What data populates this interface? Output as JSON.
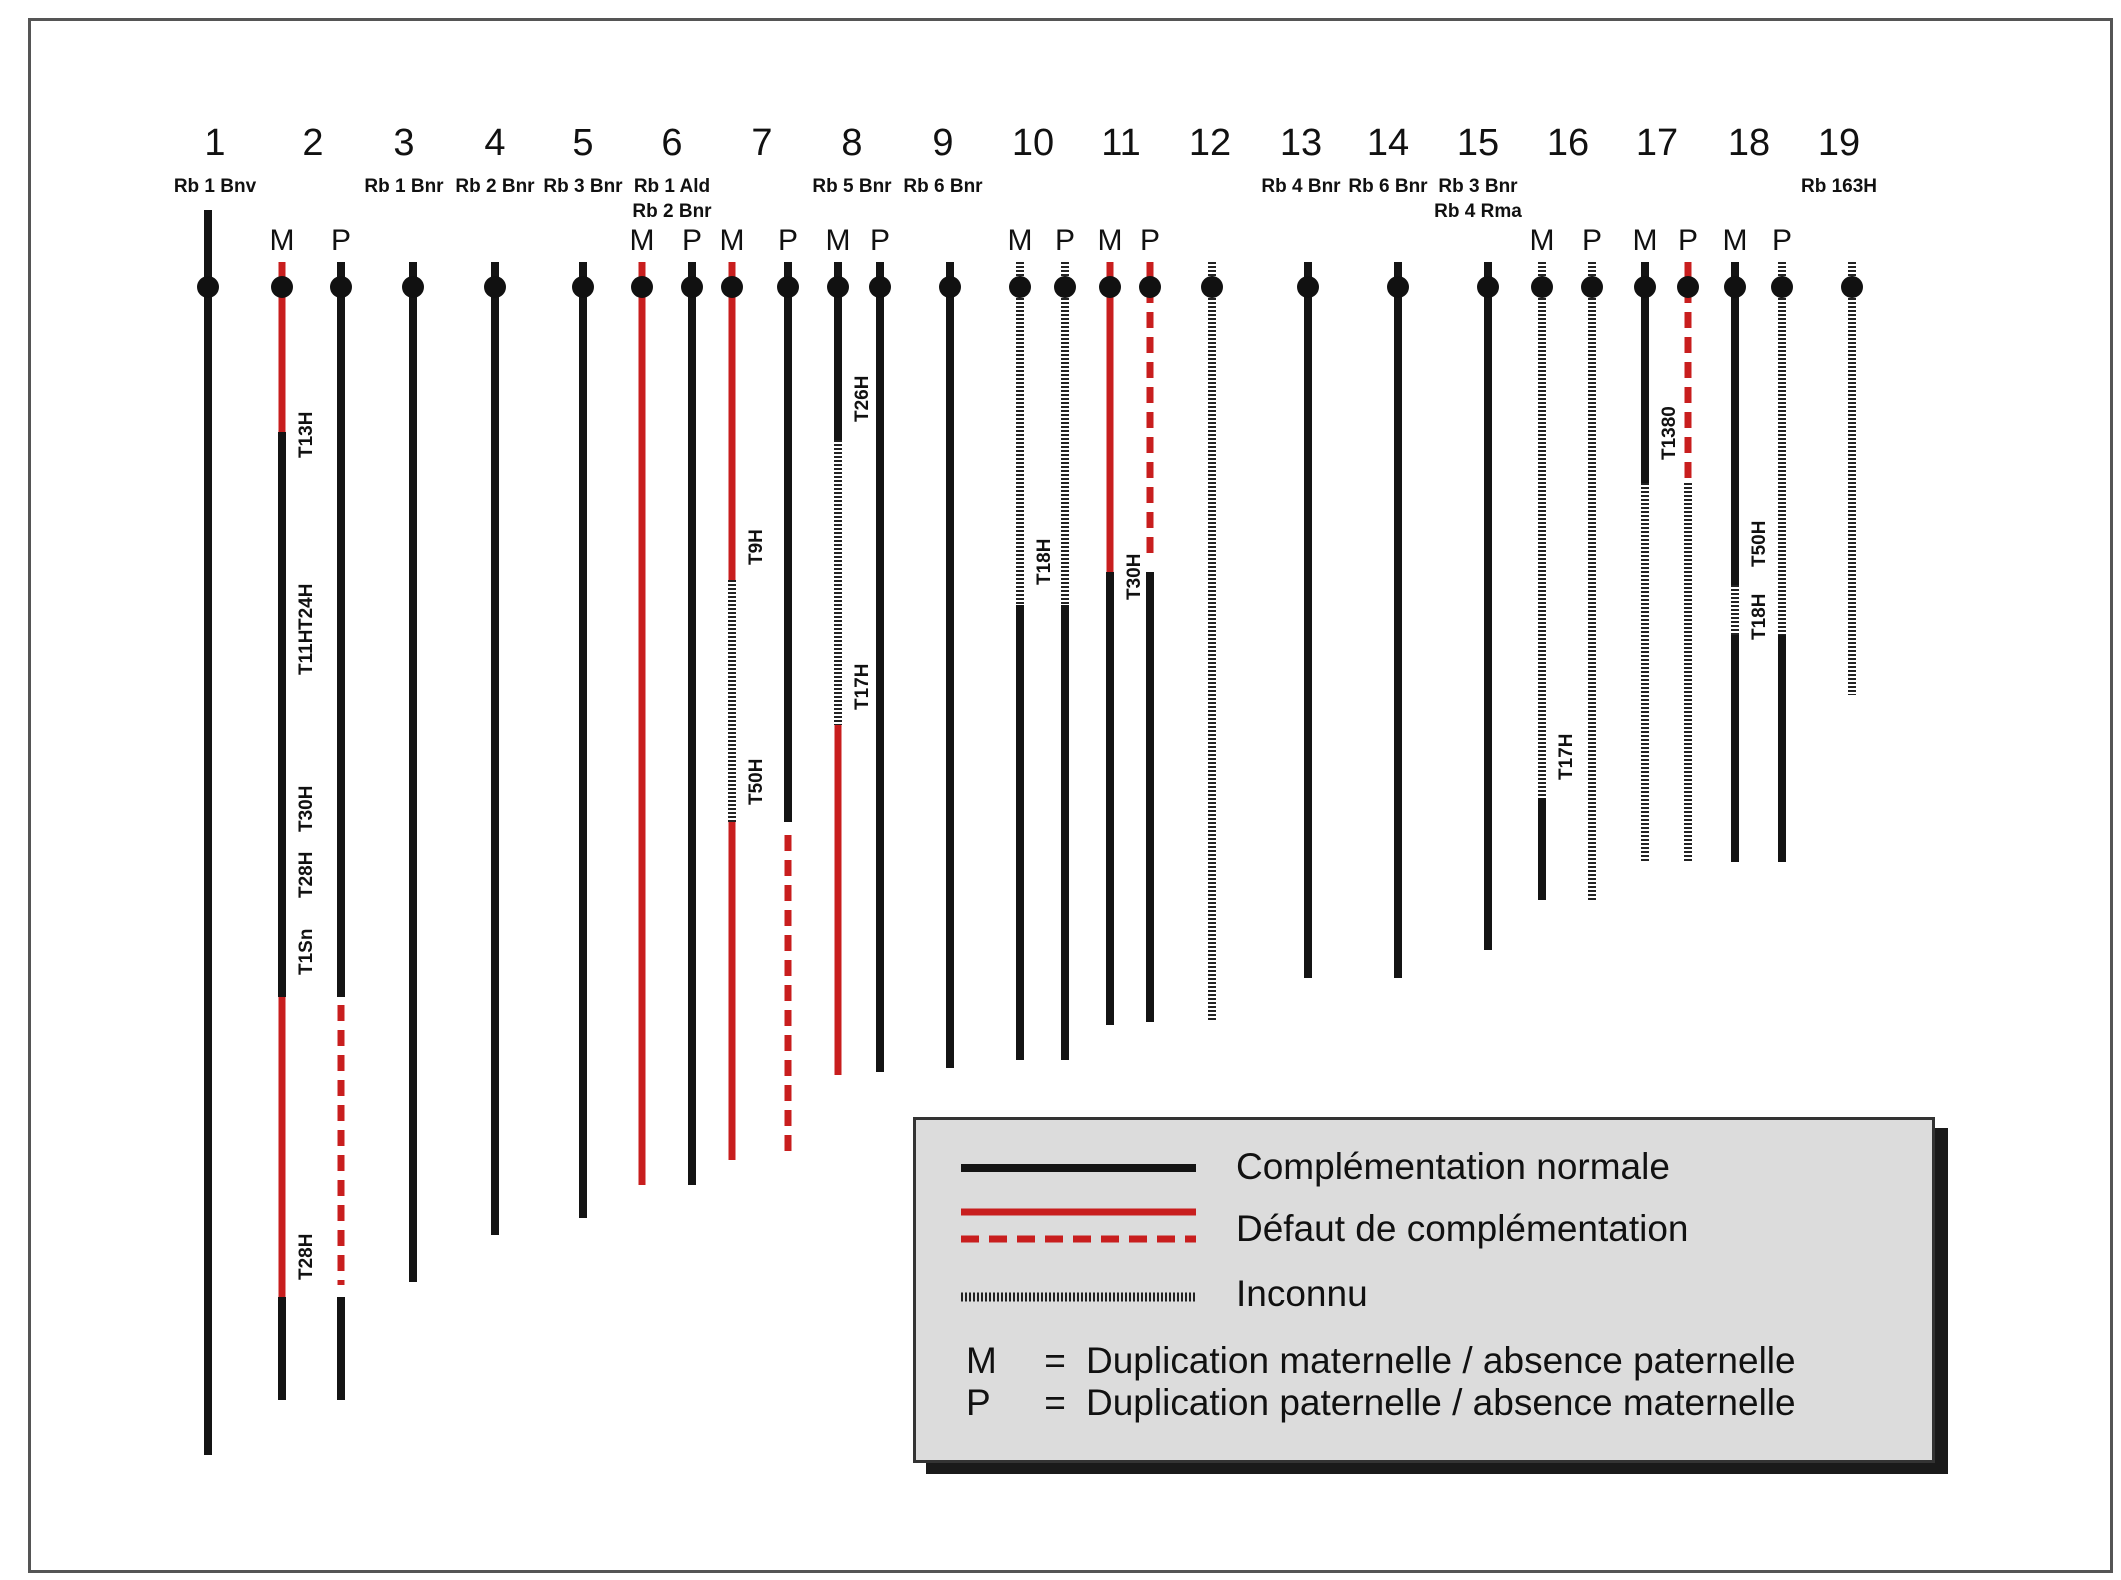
{
  "chromosomes": [
    {
      "num": "1",
      "rb": [
        "Rb 1 Bnv"
      ]
    },
    {
      "num": "2",
      "rb": []
    },
    {
      "num": "3",
      "rb": [
        "Rb 1 Bnr"
      ]
    },
    {
      "num": "4",
      "rb": [
        "Rb 2 Bnr"
      ]
    },
    {
      "num": "5",
      "rb": [
        "Rb 3 Bnr"
      ]
    },
    {
      "num": "6",
      "rb": [
        "Rb 1 Ald",
        "Rb 2 Bnr"
      ]
    },
    {
      "num": "7",
      "rb": []
    },
    {
      "num": "8",
      "rb": [
        "Rb 5 Bnr"
      ]
    },
    {
      "num": "9",
      "rb": [
        "Rb 6 Bnr"
      ]
    },
    {
      "num": "10",
      "rb": []
    },
    {
      "num": "11",
      "rb": []
    },
    {
      "num": "12",
      "rb": []
    },
    {
      "num": "13",
      "rb": [
        "Rb 4 Bnr"
      ]
    },
    {
      "num": "14",
      "rb": [
        "Rb 6 Bnr"
      ]
    },
    {
      "num": "15",
      "rb": [
        "Rb 3 Bnr",
        "Rb 4 Rma"
      ]
    },
    {
      "num": "16",
      "rb": []
    },
    {
      "num": "17",
      "rb": []
    },
    {
      "num": "18",
      "rb": []
    },
    {
      "num": "19",
      "rb": [
        "Rb 163H"
      ]
    }
  ],
  "bars": [
    {
      "chr": "1",
      "mp": "",
      "segments": [
        {
          "t": "normal",
          "from": 210,
          "to": 1455
        }
      ]
    },
    {
      "chr": "2",
      "mp": "M",
      "segments": [
        {
          "t": "defect",
          "from": 262,
          "to": 432
        },
        {
          "t": "normal",
          "from": 432,
          "to": 997
        },
        {
          "t": "defect",
          "from": 997,
          "to": 1297
        },
        {
          "t": "normal",
          "from": 1297,
          "to": 1400
        }
      ]
    },
    {
      "chr": "2",
      "mp": "P",
      "segments": [
        {
          "t": "normal",
          "from": 262,
          "to": 997
        },
        {
          "t": "defect-dashed",
          "from": 1005,
          "to": 1285
        },
        {
          "t": "normal",
          "from": 1297,
          "to": 1400
        }
      ]
    },
    {
      "chr": "3",
      "mp": "",
      "segments": [
        {
          "t": "normal",
          "from": 262,
          "to": 1282
        }
      ]
    },
    {
      "chr": "4",
      "mp": "",
      "segments": [
        {
          "t": "normal",
          "from": 262,
          "to": 1235
        }
      ]
    },
    {
      "chr": "5",
      "mp": "",
      "segments": [
        {
          "t": "normal",
          "from": 262,
          "to": 1218
        }
      ]
    },
    {
      "chr": "6",
      "mp": "M",
      "segments": [
        {
          "t": "defect",
          "from": 262,
          "to": 1185
        }
      ]
    },
    {
      "chr": "6",
      "mp": "P",
      "segments": [
        {
          "t": "normal",
          "from": 262,
          "to": 1185
        }
      ]
    },
    {
      "chr": "7",
      "mp": "M",
      "segments": [
        {
          "t": "defect",
          "from": 262,
          "to": 580
        },
        {
          "t": "unknown",
          "from": 580,
          "to": 822
        },
        {
          "t": "defect",
          "from": 822,
          "to": 1160
        }
      ]
    },
    {
      "chr": "7",
      "mp": "P",
      "segments": [
        {
          "t": "normal",
          "from": 262,
          "to": 822
        },
        {
          "t": "defect-dashed",
          "from": 835,
          "to": 1157
        }
      ]
    },
    {
      "chr": "8",
      "mp": "M",
      "segments": [
        {
          "t": "normal",
          "from": 262,
          "to": 440
        },
        {
          "t": "unknown",
          "from": 440,
          "to": 725
        },
        {
          "t": "defect",
          "from": 725,
          "to": 1075
        }
      ]
    },
    {
      "chr": "8",
      "mp": "P",
      "segments": [
        {
          "t": "normal",
          "from": 262,
          "to": 1072
        }
      ]
    },
    {
      "chr": "9",
      "mp": "",
      "segments": [
        {
          "t": "normal",
          "from": 262,
          "to": 1068
        }
      ]
    },
    {
      "chr": "10",
      "mp": "M",
      "segments": [
        {
          "t": "unknown",
          "from": 262,
          "to": 605
        },
        {
          "t": "normal",
          "from": 605,
          "to": 1060
        }
      ]
    },
    {
      "chr": "10",
      "mp": "P",
      "segments": [
        {
          "t": "unknown",
          "from": 262,
          "to": 605
        },
        {
          "t": "normal",
          "from": 605,
          "to": 1060
        }
      ]
    },
    {
      "chr": "11",
      "mp": "M",
      "segments": [
        {
          "t": "defect",
          "from": 262,
          "to": 572
        },
        {
          "t": "normal",
          "from": 572,
          "to": 1025
        }
      ]
    },
    {
      "chr": "11",
      "mp": "P",
      "segments": [
        {
          "t": "defect-dashed",
          "from": 262,
          "to": 560
        },
        {
          "t": "normal",
          "from": 572,
          "to": 1022
        }
      ]
    },
    {
      "chr": "12",
      "mp": "",
      "segments": [
        {
          "t": "unknown",
          "from": 262,
          "to": 1020
        }
      ]
    },
    {
      "chr": "13",
      "mp": "",
      "segments": [
        {
          "t": "normal",
          "from": 262,
          "to": 978
        }
      ]
    },
    {
      "chr": "14",
      "mp": "",
      "segments": [
        {
          "t": "normal",
          "from": 262,
          "to": 978
        }
      ]
    },
    {
      "chr": "15",
      "mp": "",
      "segments": [
        {
          "t": "normal",
          "from": 262,
          "to": 950
        }
      ]
    },
    {
      "chr": "16",
      "mp": "M",
      "segments": [
        {
          "t": "unknown",
          "from": 262,
          "to": 798
        },
        {
          "t": "normal",
          "from": 798,
          "to": 900
        }
      ]
    },
    {
      "chr": "16",
      "mp": "P",
      "segments": [
        {
          "t": "unknown",
          "from": 262,
          "to": 900
        }
      ]
    },
    {
      "chr": "17",
      "mp": "M",
      "segments": [
        {
          "t": "normal",
          "from": 262,
          "to": 483
        },
        {
          "t": "unknown",
          "from": 483,
          "to": 862
        }
      ]
    },
    {
      "chr": "17",
      "mp": "P",
      "segments": [
        {
          "t": "defect-dashed",
          "from": 262,
          "to": 480
        },
        {
          "t": "unknown",
          "from": 483,
          "to": 862
        }
      ]
    },
    {
      "chr": "18",
      "mp": "M",
      "segments": [
        {
          "t": "normal",
          "from": 262,
          "to": 585
        },
        {
          "t": "unknown",
          "from": 585,
          "to": 635
        },
        {
          "t": "normal",
          "from": 635,
          "to": 862
        }
      ]
    },
    {
      "chr": "18",
      "mp": "P",
      "segments": [
        {
          "t": "unknown",
          "from": 262,
          "to": 635
        },
        {
          "t": "normal",
          "from": 635,
          "to": 862
        }
      ]
    },
    {
      "chr": "19",
      "mp": "",
      "segments": [
        {
          "t": "unknown",
          "from": 262,
          "to": 695
        }
      ]
    }
  ],
  "translocations": [
    {
      "chr": "2",
      "mp": "M",
      "labels": [
        {
          "text": "T13H",
          "at": 458
        },
        {
          "text": "T24H",
          "at": 630
        },
        {
          "text": "T11H",
          "at": 675
        },
        {
          "text": "T30H",
          "at": 832
        },
        {
          "text": "T28H",
          "at": 898
        },
        {
          "text": "T1Sn",
          "at": 975
        },
        {
          "text": "T28H",
          "at": 1280
        }
      ]
    },
    {
      "chr": "7",
      "mp": "M",
      "labels": [
        {
          "text": "T9H",
          "at": 565
        },
        {
          "text": "T50H",
          "at": 805
        }
      ]
    },
    {
      "chr": "8",
      "mp": "M",
      "labels": [
        {
          "text": "T26H",
          "at": 422
        },
        {
          "text": "T17H",
          "at": 710
        }
      ]
    },
    {
      "chr": "10",
      "mp": "M",
      "labels": [
        {
          "text": "T18H",
          "at": 585
        }
      ]
    },
    {
      "chr": "11",
      "mp": "M",
      "labels": [
        {
          "text": "T30H",
          "at": 600
        }
      ]
    },
    {
      "chr": "16",
      "mp": "M",
      "labels": [
        {
          "text": "T17H",
          "at": 780
        }
      ]
    },
    {
      "chr": "17",
      "mp": "M",
      "labels": [
        {
          "text": "T1380",
          "at": 460
        }
      ]
    },
    {
      "chr": "18",
      "mp": "M",
      "labels": [
        {
          "text": "T50H",
          "at": 567
        },
        {
          "text": "T18H",
          "at": 640
        }
      ]
    }
  ],
  "colors": {
    "normal": "#141414",
    "defect": "#c81e1e",
    "unknown": "#222222",
    "legend_bg": "#dcdcdc"
  },
  "legend": {
    "normal": "Complémentation normale",
    "defect": "Défaut de complémentation",
    "unknown": "Inconnu",
    "m_key": "M",
    "m_eq": "=",
    "m_desc": "Duplication maternelle / absence paternelle",
    "p_key": "P",
    "p_eq": "=",
    "p_desc": "Duplication paternelle / absence maternelle"
  }
}
